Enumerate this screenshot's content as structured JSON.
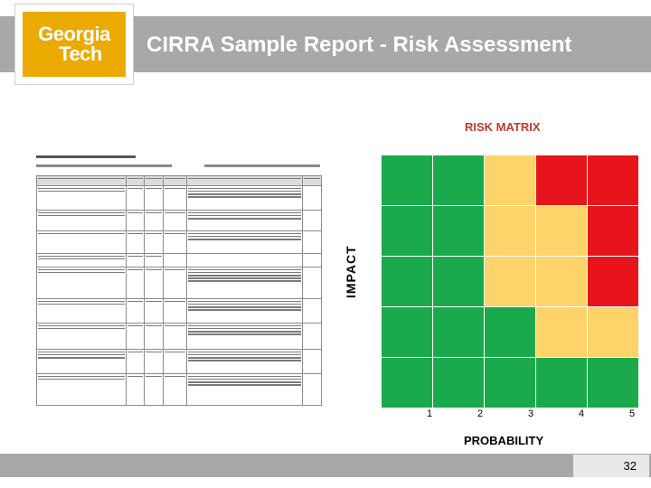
{
  "header": {
    "logo_line1": "Georgia",
    "logo_line2": "Tech",
    "title": "CIRRA Sample Report - Risk  Assessment"
  },
  "risk_matrix": {
    "title": "RISK MATRIX",
    "ylabel": "IMPACT",
    "xlabel": "PROBABILITY",
    "probability_ticks": [
      "1",
      "2",
      "3",
      "4",
      "5"
    ],
    "colors": {
      "green": "#1aaa4b",
      "yellow": "#fdd36a",
      "red": "#e8141c"
    },
    "rows": [
      [
        "green",
        "green",
        "yellow",
        "red",
        "red"
      ],
      [
        "green",
        "green",
        "yellow",
        "yellow",
        "red"
      ],
      [
        "green",
        "green",
        "yellow",
        "yellow",
        "red"
      ],
      [
        "green",
        "green",
        "green",
        "yellow",
        "yellow"
      ],
      [
        "green",
        "green",
        "green",
        "green",
        "green"
      ]
    ]
  },
  "footer": {
    "page_number": "32"
  }
}
